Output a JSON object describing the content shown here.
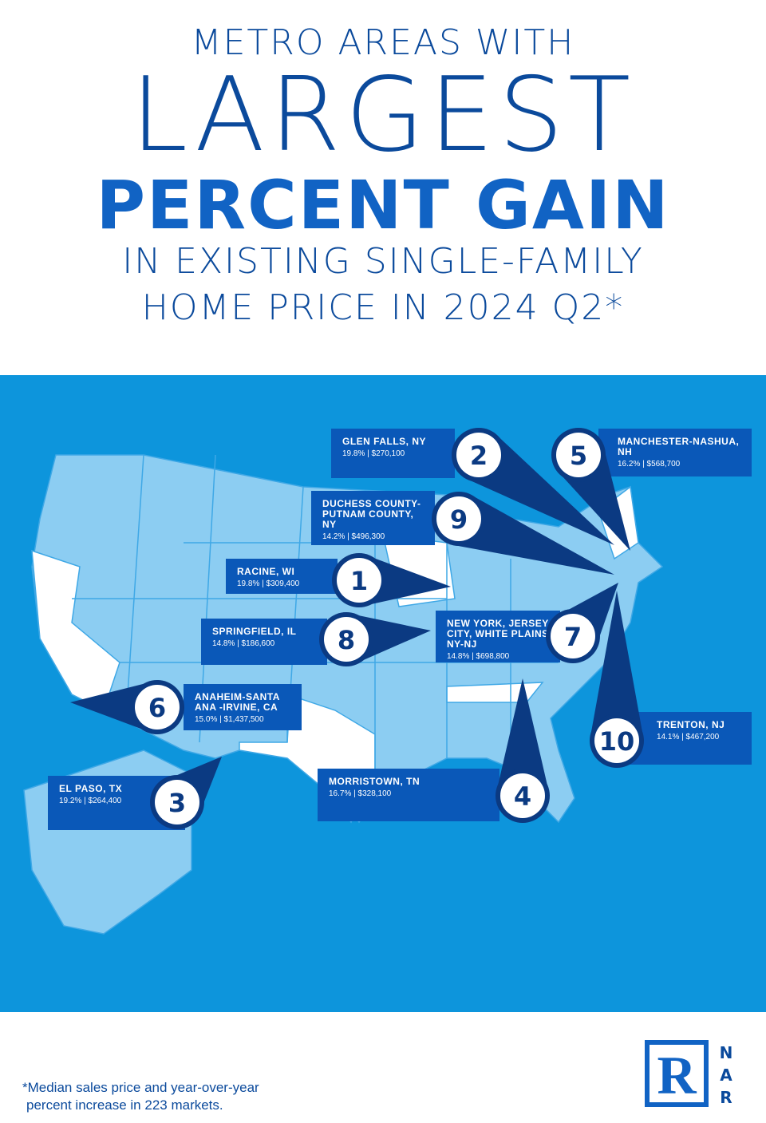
{
  "header": {
    "line1": "METRO AREAS WITH",
    "line2": "LARGEST",
    "line3": "PERCENT GAIN",
    "line4": "IN EXISTING SINGLE-FAMILY",
    "line5": "HOME PRICE IN 2024 Q2*"
  },
  "markers": [
    {
      "rank": 1,
      "name": "RACINE, WI",
      "stat": "19.8% | $309,400"
    },
    {
      "rank": 2,
      "name": "GLEN FALLS, NY",
      "stat": "19.8% | $270,100"
    },
    {
      "rank": 3,
      "name": "EL PASO, TX",
      "stat": "19.2% | $264,400"
    },
    {
      "rank": 4,
      "name": "MORRISTOWN, TN",
      "stat": "16.7% | $328,100"
    },
    {
      "rank": 5,
      "name": "MANCHESTER-NASHUA, NH",
      "stat": "16.2% | $568,700"
    },
    {
      "rank": 6,
      "name": "ANAHEIM-SANTA ANA -IRVINE, CA",
      "stat": "15.0% | $1,437,500"
    },
    {
      "rank": 7,
      "name": "NEW YORK, JERSEY CITY, WHITE PLAINS NY-NJ",
      "stat": "14.8% | $698,800"
    },
    {
      "rank": 8,
      "name": "SPRINGFIELD, IL",
      "stat": "14.8% | $186,600"
    },
    {
      "rank": 9,
      "name": "DUCHESS COUNTY-PUTNAM COUNTY, NY",
      "stat": "14.2% | $496,300"
    },
    {
      "rank": 10,
      "name": "TRENTON, NJ",
      "stat": "14.1% | $467,200"
    }
  ],
  "footer": {
    "note_line1": "*Median sales price and year-over-year",
    "note_line2": "percent increase in 223 markets.",
    "logo_mark": "R",
    "logo_letters": [
      "N",
      "A",
      "R"
    ]
  }
}
